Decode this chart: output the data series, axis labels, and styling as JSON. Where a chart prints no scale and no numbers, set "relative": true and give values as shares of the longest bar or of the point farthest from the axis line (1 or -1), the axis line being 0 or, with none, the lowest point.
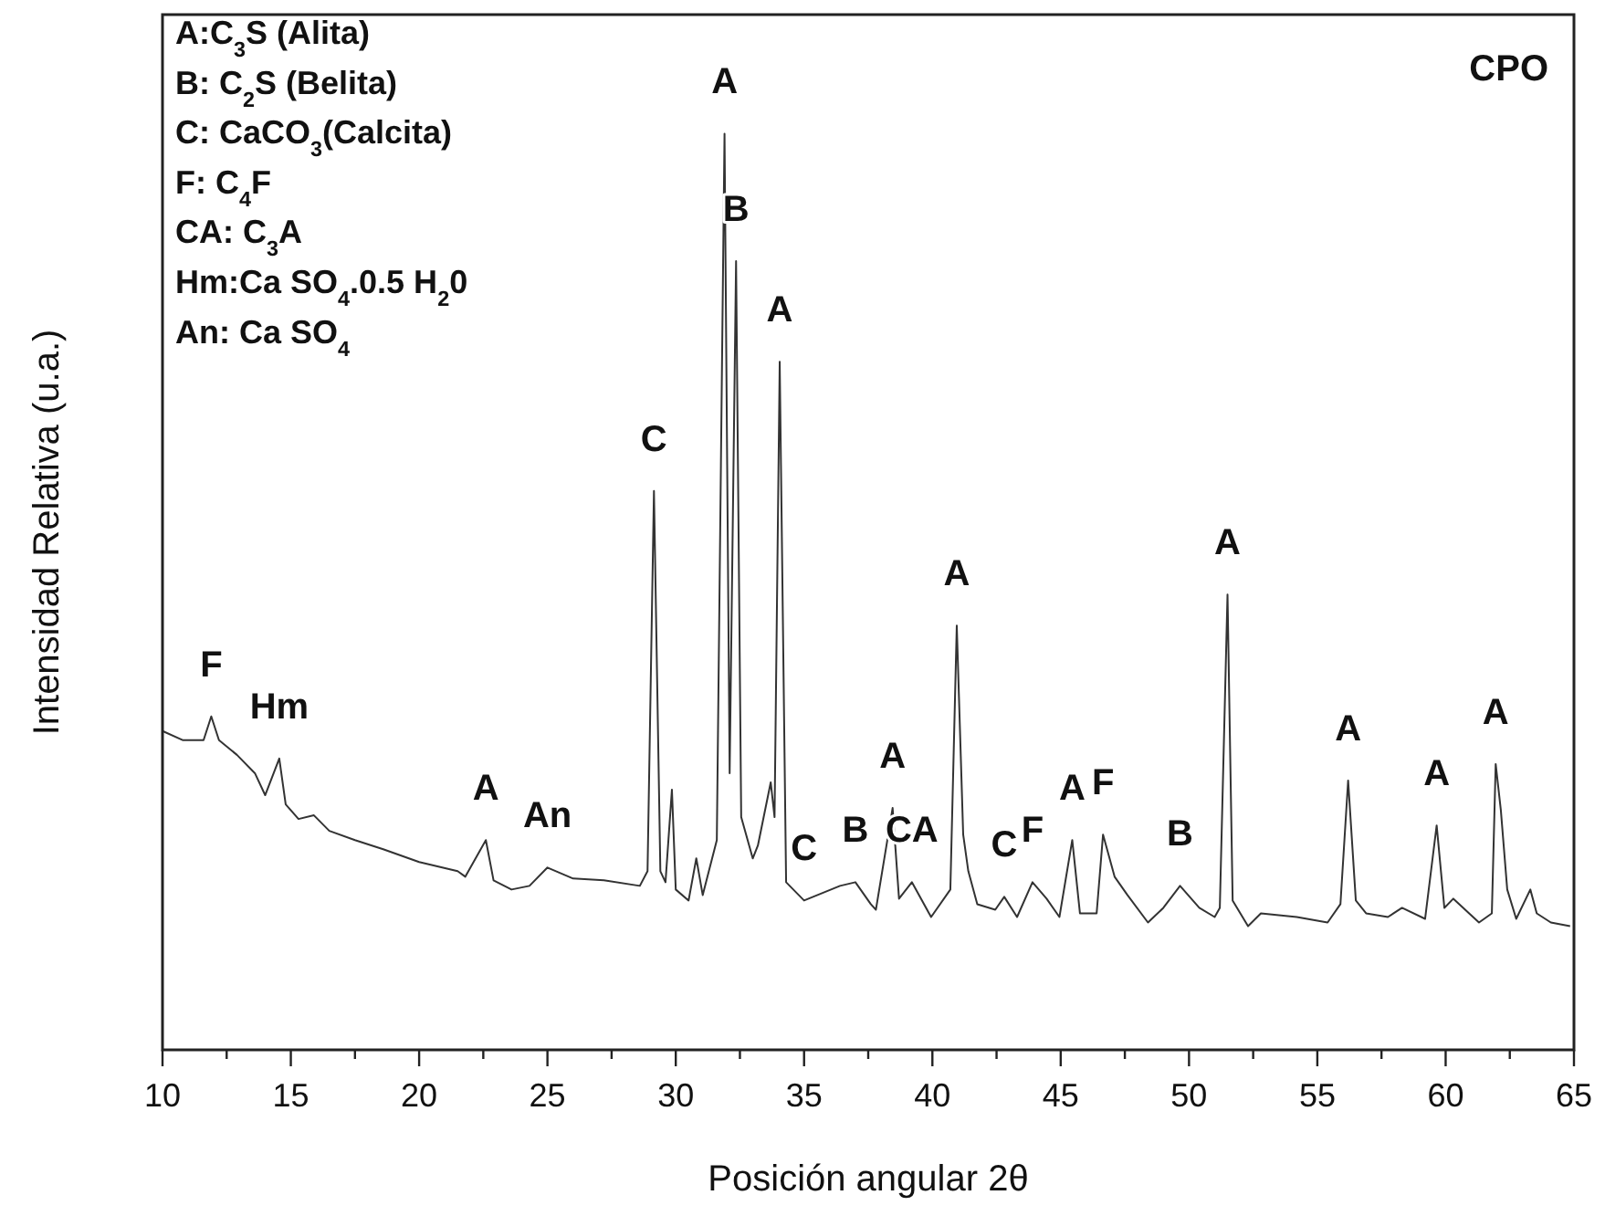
{
  "chart_data": {
    "type": "line",
    "relative": true,
    "xlabel": "Posición angular 2θ",
    "ylabel": "Intensidad Relativa (u.a.)",
    "x": [
      10,
      10.8,
      11.6,
      11.9,
      12.2,
      12.9,
      13.6,
      14.0,
      14.55,
      14.8,
      15.3,
      15.9,
      16.5,
      17.5,
      18.6,
      20.0,
      21.5,
      21.8,
      22.6,
      22.9,
      23.6,
      24.3,
      25.0,
      26.0,
      27.2,
      28.6,
      28.9,
      29.15,
      29.4,
      29.6,
      29.85,
      30.0,
      30.5,
      30.8,
      31.05,
      31.6,
      31.9,
      32.1,
      32.35,
      32.55,
      33.0,
      33.2,
      33.7,
      33.85,
      34.05,
      34.3,
      35.0,
      36.4,
      37.0,
      37.6,
      37.8,
      38.45,
      38.7,
      39.2,
      39.95,
      40.7,
      40.95,
      41.2,
      41.4,
      41.75,
      42.45,
      42.8,
      43.3,
      43.9,
      44.45,
      44.95,
      45.45,
      45.75,
      46.4,
      46.65,
      47.1,
      47.6,
      48.4,
      49.0,
      49.65,
      50.4,
      51.0,
      51.2,
      51.5,
      51.7,
      52.3,
      52.8,
      54.2,
      55.4,
      55.9,
      56.2,
      56.5,
      56.9,
      57.75,
      58.3,
      59.2,
      59.65,
      59.95,
      60.3,
      61.3,
      61.8,
      61.95,
      62.15,
      62.4,
      62.75,
      63.3,
      63.55,
      64.1,
      64.85
    ],
    "series": [
      {
        "color": "#333333",
        "values": [
          0.348,
          0.338,
          0.338,
          0.364,
          0.338,
          0.322,
          0.302,
          0.278,
          0.318,
          0.268,
          0.252,
          0.256,
          0.239,
          0.229,
          0.219,
          0.205,
          0.195,
          0.189,
          0.229,
          0.185,
          0.175,
          0.179,
          0.199,
          0.187,
          0.185,
          0.179,
          0.195,
          0.61,
          0.195,
          0.183,
          0.284,
          0.175,
          0.163,
          0.209,
          0.169,
          0.229,
          1,
          0.302,
          0.861,
          0.254,
          0.209,
          0.223,
          0.292,
          0.254,
          0.751,
          0.183,
          0.163,
          0.179,
          0.183,
          0.159,
          0.153,
          0.264,
          0.165,
          0.183,
          0.145,
          0.175,
          0.463,
          0.235,
          0.195,
          0.159,
          0.153,
          0.167,
          0.145,
          0.183,
          0.165,
          0.145,
          0.229,
          0.149,
          0.149,
          0.235,
          0.189,
          0.169,
          0.139,
          0.155,
          0.179,
          0.155,
          0.145,
          0.155,
          0.497,
          0.163,
          0.135,
          0.149,
          0.145,
          0.139,
          0.159,
          0.294,
          0.163,
          0.149,
          0.145,
          0.155,
          0.143,
          0.245,
          0.155,
          0.165,
          0.139,
          0.149,
          0.312,
          0.262,
          0.175,
          0.143,
          0.175,
          0.149,
          0.139,
          0.135
        ]
      }
    ],
    "xlim": [
      10,
      65
    ],
    "xticks": [
      10,
      {
        "value": 12.5,
        "label": null
      },
      15,
      {
        "value": 17.5,
        "label": null
      },
      20,
      {
        "value": 22.5,
        "label": null
      },
      25,
      {
        "value": 27.5,
        "label": null
      },
      30,
      {
        "value": 32.5,
        "label": null
      },
      35,
      {
        "value": 37.5,
        "label": null
      },
      40,
      {
        "value": 42.5,
        "label": null
      },
      45,
      {
        "value": 47.5,
        "label": null
      },
      50,
      {
        "value": 52.5,
        "label": null
      },
      55,
      {
        "value": 57.5,
        "label": null
      },
      60,
      {
        "value": 62.5,
        "label": null
      },
      65
    ],
    "tick_labels": "x",
    "grid": false,
    "legend": false,
    "marker": "none",
    "line_style": "solid",
    "annotations": [
      "A:C$_{3}$S (Alita)",
      "B: C$_{2}$S (Belita)",
      "C: CaCO$_{3}$(Calcita)",
      "F: C$_{4}$F",
      "CA: C$_{3}$A",
      "Hm:Ca SO$_{4}$.0.5 H$_{2}$0",
      "An: Ca SO$_{4}$",
      "CPO",
      {
        "text": "F",
        "x": 11.9,
        "y": 0.364
      },
      {
        "text": "Hm",
        "x": 14.55,
        "y": 0.318
      },
      {
        "text": "A",
        "x": 22.6,
        "y": 0.229
      },
      {
        "text": "An",
        "x": 25.0,
        "y": 0.199
      },
      {
        "text": "C",
        "x": 29.15,
        "y": 0.61
      },
      {
        "text": "A",
        "x": 31.9,
        "y": 1
      },
      {
        "text": "B",
        "x": 32.35,
        "y": 0.861
      },
      {
        "text": "A",
        "x": 34.05,
        "y": 0.751
      },
      {
        "text": "C",
        "x": 35.0,
        "y": 0.163
      },
      {
        "text": "B",
        "x": 37.0,
        "y": 0.183
      },
      {
        "text": "A",
        "x": 38.45,
        "y": 0.264
      },
      {
        "text": "CA",
        "x": 39.2,
        "y": 0.183
      },
      {
        "text": "A",
        "x": 40.95,
        "y": 0.463
      },
      {
        "text": "C",
        "x": 42.8,
        "y": 0.167
      },
      {
        "text": "F",
        "x": 43.9,
        "y": 0.183
      },
      {
        "text": "A",
        "x": 45.45,
        "y": 0.229
      },
      {
        "text": "F",
        "x": 46.65,
        "y": 0.235
      },
      {
        "text": "B",
        "x": 49.65,
        "y": 0.179
      },
      {
        "text": "A",
        "x": 51.5,
        "y": 0.497
      },
      {
        "text": "A",
        "x": 56.2,
        "y": 0.294
      },
      {
        "text": "A",
        "x": 59.65,
        "y": 0.245
      },
      {
        "text": "A",
        "x": 61.95,
        "y": 0.312
      }
    ]
  }
}
